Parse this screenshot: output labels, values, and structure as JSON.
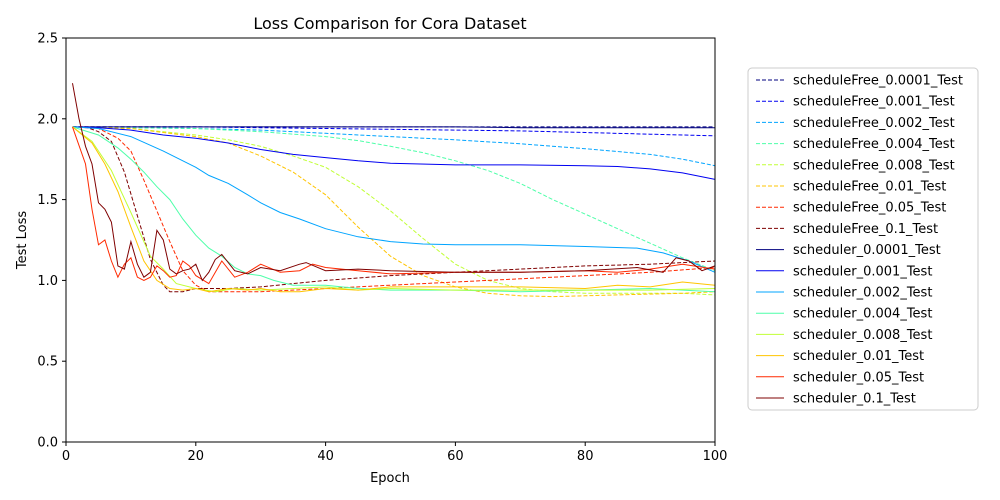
{
  "chart_data": {
    "type": "line",
    "title": "Loss Comparison for Cora Dataset",
    "xlabel": "Epoch",
    "ylabel": "Test Loss",
    "xlim": [
      0,
      100
    ],
    "ylim": [
      0,
      2.5
    ],
    "xticks": [
      0,
      20,
      40,
      60,
      80,
      100
    ],
    "yticks": [
      0.0,
      0.5,
      1.0,
      1.5,
      2.0,
      2.5
    ],
    "xtick_labels": [
      "0",
      "20",
      "40",
      "60",
      "80",
      "100"
    ],
    "ytick_labels": [
      "0.0",
      "0.5",
      "1.0",
      "1.5",
      "2.0",
      "2.5"
    ],
    "grid": false,
    "legend_position": "right-outside",
    "series": [
      {
        "name": "scheduleFree_0.0001_Test",
        "color": "#00007f",
        "dash": true,
        "x": [
          1,
          10,
          20,
          30,
          40,
          50,
          60,
          70,
          80,
          90,
          100
        ],
        "y": [
          1.95,
          1.95,
          1.95,
          1.95,
          1.95,
          1.95,
          1.95,
          1.95,
          1.95,
          1.95,
          1.95
        ]
      },
      {
        "name": "scheduleFree_0.001_Test",
        "color": "#0000f1",
        "dash": true,
        "x": [
          1,
          10,
          20,
          30,
          40,
          50,
          60,
          70,
          80,
          90,
          100
        ],
        "y": [
          1.95,
          1.95,
          1.95,
          1.945,
          1.94,
          1.935,
          1.93,
          1.925,
          1.915,
          1.905,
          1.895
        ]
      },
      {
        "name": "scheduleFree_0.002_Test",
        "color": "#00a4ff",
        "dash": true,
        "x": [
          1,
          10,
          20,
          30,
          40,
          50,
          60,
          70,
          80,
          90,
          95,
          100
        ],
        "y": [
          1.95,
          1.945,
          1.94,
          1.93,
          1.91,
          1.89,
          1.87,
          1.845,
          1.815,
          1.78,
          1.75,
          1.71
        ]
      },
      {
        "name": "scheduleFree_0.004_Test",
        "color": "#4effa9",
        "dash": true,
        "x": [
          1,
          10,
          20,
          30,
          40,
          45,
          50,
          55,
          60,
          65,
          70,
          75,
          80,
          85,
          90,
          95,
          100
        ],
        "y": [
          1.95,
          1.945,
          1.94,
          1.92,
          1.89,
          1.865,
          1.83,
          1.79,
          1.74,
          1.68,
          1.6,
          1.5,
          1.41,
          1.32,
          1.23,
          1.14,
          1.06
        ]
      },
      {
        "name": "scheduleFree_0.008_Test",
        "color": "#c1ff36",
        "dash": true,
        "x": [
          1,
          10,
          20,
          25,
          30,
          35,
          40,
          45,
          50,
          55,
          60,
          65,
          70,
          75,
          80,
          85,
          90,
          95,
          100
        ],
        "y": [
          1.95,
          1.94,
          1.9,
          1.87,
          1.83,
          1.77,
          1.7,
          1.58,
          1.43,
          1.26,
          1.1,
          1.0,
          0.95,
          0.93,
          0.92,
          0.92,
          0.92,
          0.92,
          0.91
        ]
      },
      {
        "name": "scheduleFree_0.01_Test",
        "color": "#ffc400",
        "dash": true,
        "x": [
          1,
          10,
          20,
          25,
          30,
          35,
          40,
          45,
          50,
          55,
          60,
          65,
          70,
          75,
          80,
          85,
          90,
          95,
          100
        ],
        "y": [
          1.95,
          1.94,
          1.89,
          1.85,
          1.77,
          1.67,
          1.53,
          1.33,
          1.15,
          1.03,
          0.96,
          0.92,
          0.905,
          0.9,
          0.905,
          0.91,
          0.915,
          0.92,
          0.93
        ]
      },
      {
        "name": "scheduleFree_0.05_Test",
        "color": "#ff2900",
        "dash": true,
        "x": [
          1,
          5,
          8,
          10,
          12,
          14,
          16,
          18,
          20,
          22,
          25,
          30,
          40,
          50,
          60,
          70,
          80,
          90,
          100
        ],
        "y": [
          1.95,
          1.94,
          1.88,
          1.8,
          1.62,
          1.43,
          1.24,
          1.06,
          0.97,
          0.93,
          0.93,
          0.93,
          0.95,
          0.97,
          0.99,
          1.01,
          1.03,
          1.05,
          1.08
        ]
      },
      {
        "name": "scheduleFree_0.1_Test",
        "color": "#7f0000",
        "dash": true,
        "x": [
          1,
          3,
          5,
          7,
          9,
          11,
          13,
          15,
          16,
          18,
          20,
          25,
          30,
          35,
          40,
          50,
          60,
          70,
          80,
          90,
          100
        ],
        "y": [
          1.95,
          1.95,
          1.92,
          1.86,
          1.67,
          1.4,
          1.13,
          0.97,
          0.93,
          0.93,
          0.95,
          0.95,
          0.96,
          0.98,
          1.0,
          1.03,
          1.05,
          1.07,
          1.09,
          1.1,
          1.12
        ]
      },
      {
        "name": "scheduler_0.0001_Test",
        "color": "#00007f",
        "dash": false,
        "x": [
          1,
          10,
          20,
          30,
          40,
          50,
          60,
          70,
          80,
          90,
          100
        ],
        "y": [
          1.95,
          1.95,
          1.95,
          1.95,
          1.95,
          1.95,
          1.95,
          1.945,
          1.945,
          1.945,
          1.945
        ]
      },
      {
        "name": "scheduler_0.001_Test",
        "color": "#0000f1",
        "dash": false,
        "x": [
          1,
          5,
          10,
          15,
          20,
          25,
          30,
          35,
          40,
          45,
          50,
          60,
          70,
          80,
          85,
          90,
          95,
          100
        ],
        "y": [
          1.95,
          1.945,
          1.93,
          1.9,
          1.88,
          1.85,
          1.81,
          1.78,
          1.76,
          1.74,
          1.725,
          1.715,
          1.715,
          1.71,
          1.705,
          1.69,
          1.665,
          1.625
        ]
      },
      {
        "name": "scheduler_0.002_Test",
        "color": "#00a4ff",
        "dash": false,
        "x": [
          1,
          5,
          10,
          15,
          18,
          20,
          22,
          25,
          28,
          30,
          33,
          36,
          40,
          45,
          50,
          55,
          60,
          70,
          80,
          88,
          92,
          96,
          100
        ],
        "y": [
          1.95,
          1.94,
          1.89,
          1.8,
          1.74,
          1.7,
          1.65,
          1.6,
          1.53,
          1.48,
          1.42,
          1.38,
          1.32,
          1.27,
          1.24,
          1.225,
          1.22,
          1.22,
          1.21,
          1.2,
          1.17,
          1.12,
          1.05
        ]
      },
      {
        "name": "scheduler_0.004_Test",
        "color": "#4effa9",
        "dash": false,
        "x": [
          1,
          5,
          8,
          10,
          12,
          14,
          16,
          18,
          20,
          22,
          24,
          26,
          28,
          30,
          32,
          35,
          40,
          45,
          50,
          60,
          70,
          80,
          90,
          100
        ],
        "y": [
          1.95,
          1.9,
          1.82,
          1.75,
          1.67,
          1.58,
          1.5,
          1.38,
          1.28,
          1.2,
          1.15,
          1.08,
          1.04,
          1.03,
          1.0,
          0.97,
          0.97,
          0.95,
          0.94,
          0.94,
          0.93,
          0.94,
          0.95,
          0.93
        ]
      },
      {
        "name": "scheduler_0.008_Test",
        "color": "#c1ff36",
        "dash": false,
        "x": [
          1,
          4,
          7,
          10,
          13,
          15,
          17,
          20,
          23,
          26,
          30,
          35,
          40,
          45,
          50,
          60,
          70,
          80,
          90,
          100
        ],
        "y": [
          1.95,
          1.86,
          1.68,
          1.42,
          1.15,
          1.07,
          0.98,
          0.95,
          0.93,
          0.95,
          0.94,
          0.95,
          0.96,
          0.94,
          0.95,
          0.94,
          0.94,
          0.94,
          0.94,
          0.95
        ]
      },
      {
        "name": "scheduler_0.01_Test",
        "color": "#ffc400",
        "dash": false,
        "x": [
          1,
          4,
          6,
          8,
          10,
          12,
          14,
          16,
          18,
          20,
          22,
          25,
          28,
          30,
          33,
          36,
          40,
          45,
          50,
          60,
          70,
          80,
          85,
          90,
          95,
          100
        ],
        "y": [
          1.95,
          1.85,
          1.72,
          1.55,
          1.33,
          1.12,
          1.0,
          0.95,
          0.94,
          0.95,
          0.93,
          0.95,
          0.94,
          0.95,
          0.93,
          0.93,
          0.95,
          0.94,
          0.96,
          0.96,
          0.96,
          0.95,
          0.97,
          0.96,
          0.99,
          0.97
        ]
      },
      {
        "name": "scheduler_0.05_Test",
        "color": "#ff2900",
        "dash": false,
        "x": [
          1,
          3,
          4,
          5,
          6,
          7,
          8,
          9,
          10,
          11,
          12,
          13,
          14,
          15,
          16,
          17,
          18,
          19,
          20,
          22,
          24,
          26,
          28,
          30,
          33,
          36,
          38,
          40,
          45,
          50,
          60,
          70,
          80,
          85,
          90,
          95,
          100
        ],
        "y": [
          1.95,
          1.72,
          1.44,
          1.22,
          1.25,
          1.12,
          1.02,
          1.1,
          1.14,
          1.02,
          1.0,
          1.02,
          1.09,
          1.06,
          1.02,
          1.03,
          1.12,
          1.09,
          1.03,
          0.98,
          1.12,
          1.02,
          1.05,
          1.1,
          1.05,
          1.06,
          1.1,
          1.08,
          1.06,
          1.04,
          1.05,
          1.05,
          1.06,
          1.05,
          1.07,
          1.1,
          1.07
        ]
      },
      {
        "name": "scheduler_0.1_Test",
        "color": "#7f0000",
        "dash": false,
        "x": [
          1,
          2,
          3,
          4,
          5,
          6,
          7,
          8,
          9,
          10,
          11,
          12,
          13,
          14,
          15,
          16,
          17,
          18,
          19,
          20,
          21,
          22,
          23,
          24,
          26,
          28,
          30,
          33,
          36,
          37,
          40,
          45,
          50,
          60,
          70,
          80,
          88,
          92,
          94,
          96,
          98,
          100
        ],
        "y": [
          2.22,
          2.0,
          1.83,
          1.72,
          1.48,
          1.44,
          1.36,
          1.09,
          1.07,
          1.24,
          1.1,
          1.02,
          1.05,
          1.31,
          1.25,
          1.07,
          1.04,
          1.06,
          1.07,
          1.1,
          1.0,
          1.05,
          1.13,
          1.16,
          1.06,
          1.04,
          1.08,
          1.06,
          1.1,
          1.11,
          1.06,
          1.07,
          1.06,
          1.05,
          1.05,
          1.06,
          1.08,
          1.05,
          1.14,
          1.12,
          1.06,
          1.09
        ]
      }
    ]
  }
}
